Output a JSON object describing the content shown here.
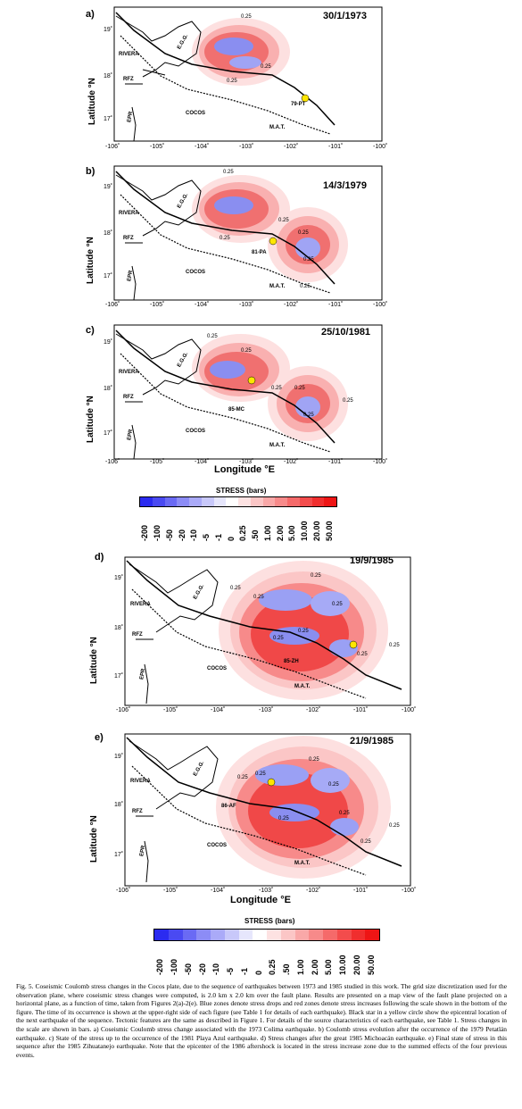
{
  "figure": {
    "y_axis_label": "Latitude °N",
    "x_axis_label": "Longitude °E",
    "x_ticks": [
      "-106˚",
      "-105˚",
      "-104˚",
      "-103˚",
      "-102˚",
      "-101˚",
      "-100˚"
    ],
    "y_ticks": [
      "19˚",
      "18˚",
      "17˚"
    ],
    "features": {
      "rivera": "RIVERA",
      "egg": "E.G.G.",
      "rfz": "RFZ",
      "epr": "EPR",
      "cocos": "COCOS",
      "mat": "M.A.T."
    },
    "panels": [
      {
        "label": "a)",
        "date": "30/1/1973",
        "event": "79-PT",
        "contours": [
          "0.25",
          "0.25",
          "0.25"
        ]
      },
      {
        "label": "b)",
        "date": "14/3/1979",
        "event": "81-PA",
        "contours": [
          "0.25",
          "0.25",
          "0.25",
          "0.25",
          "0.25",
          "0.25"
        ]
      },
      {
        "label": "c)",
        "date": "25/10/1981",
        "event": "85-MC",
        "contours": [
          "0.25",
          "0.25",
          "0.25",
          "0.25",
          "0.25",
          "0.25"
        ]
      },
      {
        "label": "d)",
        "date": "19/9/1985",
        "event": "85-ZH",
        "contours": [
          "0.25",
          "0.25",
          "0.25",
          "0.25",
          "0.25",
          "0.25",
          "0.25",
          "0.25"
        ]
      },
      {
        "label": "e)",
        "date": "21/9/1985",
        "event": "86-AF",
        "contours": [
          "0.25",
          "0.25",
          "0.25",
          "0.25",
          "0.25",
          "0.25",
          "0.25",
          "0.25"
        ]
      }
    ]
  },
  "stress_scale": {
    "title": "STRESS (bars)",
    "ticks": [
      "-200",
      "-100",
      "-50",
      "-20",
      "-10",
      "-5",
      "-1",
      "0",
      "0.25",
      ".50",
      "1.00",
      "2.00",
      "5.00",
      "10.00",
      "20.00",
      "50.00"
    ],
    "ticks_2": [
      "-200",
      "-100",
      "-50",
      "-20",
      "-10",
      "-5",
      "-1",
      "0",
      "0.25",
      ".50",
      "1.00",
      "2.00",
      "5.00",
      "10.00",
      "20.00",
      "50.00"
    ],
    "colors": [
      "#2b2bf0",
      "#4a4af2",
      "#6a6af4",
      "#8c8cf6",
      "#aaaaf8",
      "#c8c8fa",
      "#e6e6fc",
      "#ffffff",
      "#fde2e2",
      "#fbc6c6",
      "#f9a8a8",
      "#f78a8a",
      "#f56a6a",
      "#f34c4c",
      "#f02e2e",
      "#ee1515"
    ]
  },
  "caption": "Fig. 5. Coseismic Coulomb stress changes in the Cocos plate, due to the sequence of earthquakes between 1973 and 1985 studied in this work. The grid size discretization used for the observation plane, where coseismic stress changes were computed, is 2.0 km x 2.0 km over the fault plane. Results are presented on a map view of the fault plane projected on a horizontal plane, as a function of time, taken from Figures 2(a)-2(e). Blue zones denote stress drops and red zones denote stress increases following the scale shown in the bottom of the figure. The time of its occurrence is shown at the upper-right side of each figure (see Table 1 for details of each earthquake). Black star in a yellow circle show the epicentral location of the next earthquake of the sequence. Tectonic features are the same as described in Figure 1. For details of the source characteristics of each earthquake, see Table 1. Stress changes in the scale are shown in bars. a) Coseismic Coulomb stress change associated with the 1973 Colima earthquake. b) Coulomb stress evolution after the occurrence of the 1979 Petatlán earthquake. c) State of the stress up to the occurrence of the 1981 Playa Azul earthquake. d) Stress changes after the great 1985 Michoacán earthquake. e) Final state of stress in this sequence after the 1985 Zihuatanejo earthquake. Note that the epicenter of the 1986 aftershock is located in the stress increase zone due to the summed effects of the four previous events."
}
